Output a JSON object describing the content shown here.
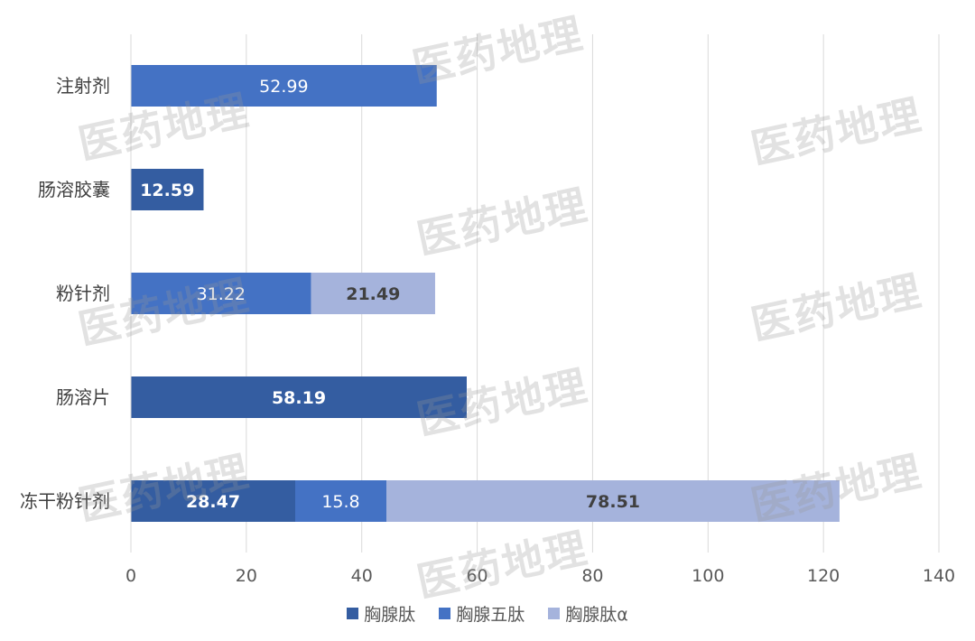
{
  "chart_data": {
    "type": "bar",
    "orientation": "horizontal",
    "stacked": true,
    "categories": [
      "注射剂",
      "肠溶胶囊",
      "粉针剂",
      "肠溶片",
      "冻干粉针剂"
    ],
    "series": [
      {
        "name": "胸腺肽",
        "color": "#345da1",
        "values": [
          0,
          12.59,
          0,
          58.19,
          28.47
        ],
        "labels": [
          "",
          "12.59",
          "",
          "58.19",
          "28.47"
        ]
      },
      {
        "name": "胸腺五肽",
        "color": "#4472c4",
        "values": [
          52.99,
          0,
          31.22,
          0,
          15.8
        ],
        "labels": [
          "52.99",
          "",
          "31.22",
          "",
          "15.8"
        ]
      },
      {
        "name": "胸腺肽α",
        "color": "#a5b3dc",
        "values": [
          0,
          0,
          21.49,
          0,
          78.51
        ],
        "labels": [
          "",
          "",
          "21.49",
          "",
          "78.51"
        ]
      }
    ],
    "xlim": [
      0,
      140
    ],
    "xticks": [
      "0",
      "20",
      "40",
      "60",
      "80",
      "100",
      "120",
      "140"
    ],
    "grid": true,
    "legend_position": "bottom",
    "title": "",
    "xlabel": "",
    "ylabel": ""
  },
  "watermark": {
    "text": "医药地理"
  }
}
